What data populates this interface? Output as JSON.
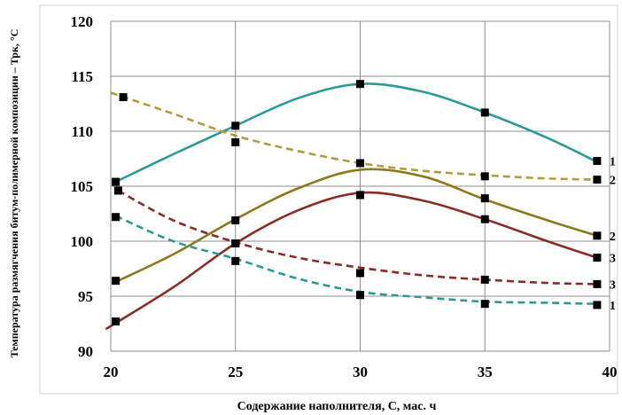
{
  "chart_data": {
    "type": "line",
    "xlabel": "Содержание наполнителя, С, мас. ч",
    "ylabel": "Температура размягчения битум-полимерной  композиции – Трк, °С",
    "xlim": [
      20,
      40
    ],
    "ylim": [
      90,
      120
    ],
    "x_ticks": [
      "20",
      "25",
      "30",
      "35",
      "40"
    ],
    "y_ticks": [
      "90",
      "95",
      "100",
      "105",
      "110",
      "115",
      "120"
    ],
    "grid": true,
    "series": [
      {
        "label": "1",
        "color": "#2a9a96",
        "dashed": false,
        "markers": [
          [
            20.2,
            105.4
          ],
          [
            25,
            110.5
          ],
          [
            30,
            114.3
          ],
          [
            35,
            111.7
          ],
          [
            39.5,
            107.3
          ]
        ],
        "curve": [
          [
            20.2,
            105.4
          ],
          [
            22.5,
            107.9
          ],
          [
            25,
            110.5
          ],
          [
            27.5,
            113.0
          ],
          [
            30,
            114.3
          ],
          [
            32.5,
            113.6
          ],
          [
            35,
            111.7
          ],
          [
            37.5,
            109.4
          ],
          [
            39.5,
            107.2
          ]
        ]
      },
      {
        "label": "2",
        "color": "#b39b3a",
        "dashed": true,
        "markers": [
          [
            20.5,
            113.1
          ],
          [
            25,
            109.0
          ],
          [
            30,
            107.1
          ],
          [
            35,
            105.9
          ],
          [
            39.5,
            105.6
          ]
        ],
        "curve": [
          [
            20,
            113.5
          ],
          [
            22.5,
            111.6
          ],
          [
            25,
            109.6
          ],
          [
            27.5,
            108.2
          ],
          [
            30,
            107.1
          ],
          [
            32.5,
            106.4
          ],
          [
            35,
            106.0
          ],
          [
            37.5,
            105.7
          ],
          [
            39.5,
            105.6
          ]
        ]
      },
      {
        "label": "2",
        "color": "#8a7a1a",
        "dashed": false,
        "markers": [
          [
            20.2,
            96.4
          ],
          [
            25,
            101.9
          ],
          [
            30,
            104.2
          ],
          [
            35,
            103.9
          ],
          [
            39.5,
            100.5
          ]
        ],
        "curve": [
          [
            20.2,
            96.3
          ],
          [
            22.5,
            98.8
          ],
          [
            25,
            102.0
          ],
          [
            27.5,
            104.8
          ],
          [
            30,
            106.5
          ],
          [
            32.5,
            105.9
          ],
          [
            35,
            103.8
          ],
          [
            37.5,
            101.9
          ],
          [
            39.5,
            100.5
          ]
        ]
      },
      {
        "label": "3",
        "color": "#8b2b28",
        "dashed": false,
        "markers": [
          [
            20.2,
            92.7
          ],
          [
            25,
            99.8
          ],
          [
            30,
            104.2
          ],
          [
            35,
            102.0
          ],
          [
            39.5,
            98.5
          ]
        ],
        "curve": [
          [
            19.8,
            92.0
          ],
          [
            22.5,
            95.8
          ],
          [
            25,
            99.8
          ],
          [
            27.5,
            102.8
          ],
          [
            30,
            104.4
          ],
          [
            32.5,
            103.7
          ],
          [
            35,
            102.0
          ],
          [
            37.5,
            100.0
          ],
          [
            39.5,
            98.5
          ]
        ]
      },
      {
        "label": "3",
        "color": "#8b2b28",
        "dashed": true,
        "markers": [
          [
            20.3,
            104.6
          ],
          [
            25,
            99.8
          ],
          [
            30,
            97.1
          ],
          [
            35,
            96.5
          ],
          [
            39.5,
            96.1
          ]
        ],
        "curve": [
          [
            20.3,
            104.6
          ],
          [
            22.5,
            101.9
          ],
          [
            25,
            99.9
          ],
          [
            27.5,
            98.5
          ],
          [
            30,
            97.6
          ],
          [
            32.5,
            96.9
          ],
          [
            35,
            96.5
          ],
          [
            37.5,
            96.2
          ],
          [
            39.5,
            96.1
          ]
        ]
      },
      {
        "label": "1",
        "color": "#2a9a96",
        "dashed": true,
        "markers": [
          [
            20.2,
            102.2
          ],
          [
            25,
            98.2
          ],
          [
            30,
            95.1
          ],
          [
            35,
            94.3
          ],
          [
            39.5,
            94.2
          ]
        ],
        "curve": [
          [
            20.2,
            102.3
          ],
          [
            22.5,
            100.0
          ],
          [
            25,
            98.4
          ],
          [
            27.5,
            96.6
          ],
          [
            30,
            95.4
          ],
          [
            32.5,
            94.9
          ],
          [
            35,
            94.5
          ],
          [
            37.5,
            94.4
          ],
          [
            39.5,
            94.3
          ]
        ]
      }
    ]
  }
}
